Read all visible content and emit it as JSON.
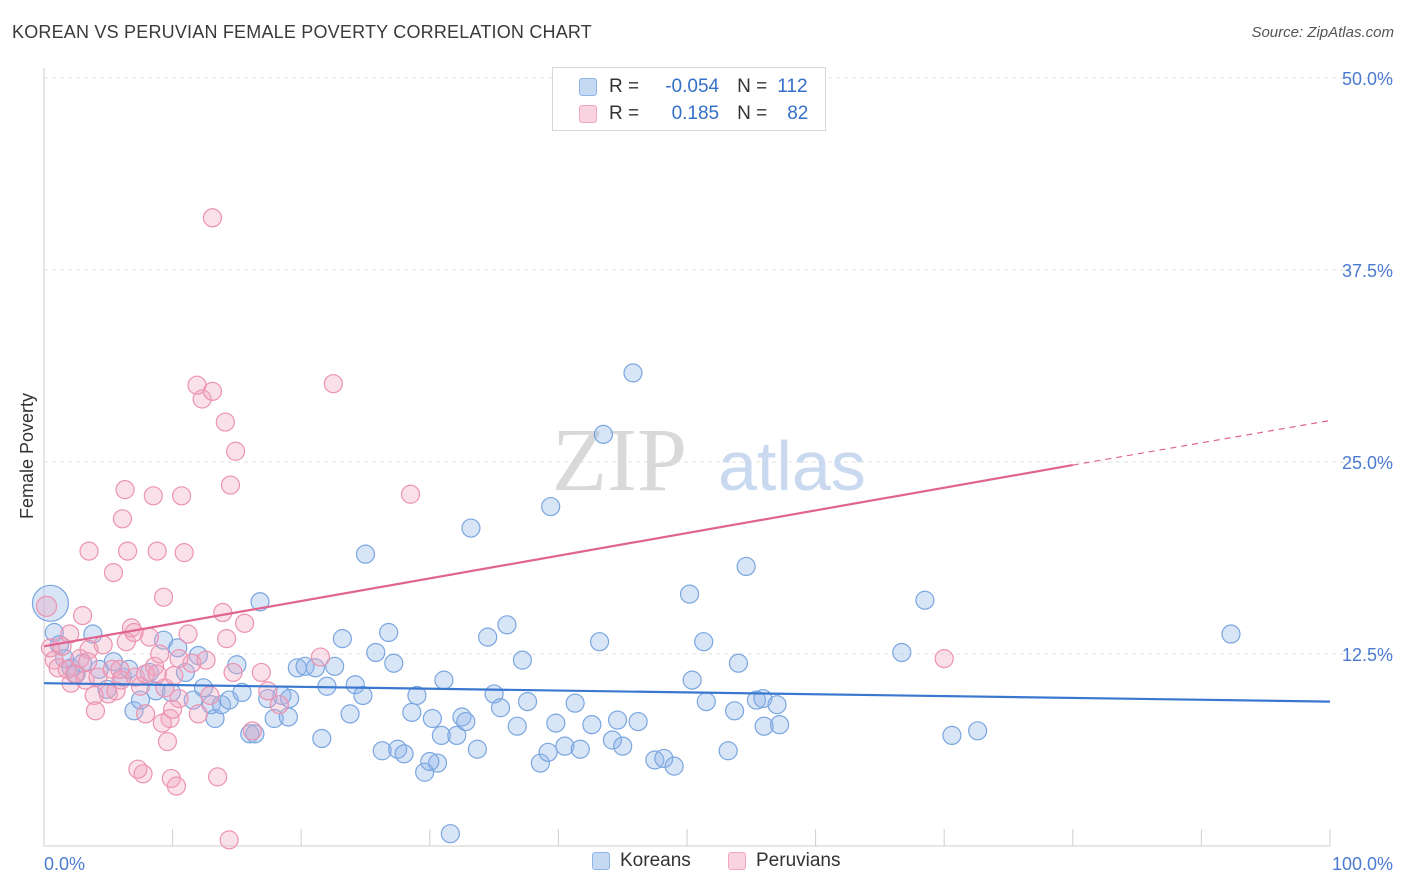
{
  "title": "KOREAN VS PERUVIAN FEMALE POVERTY CORRELATION CHART",
  "source": "Source: ZipAtlas.com",
  "watermark": {
    "zip": "ZIP",
    "atlas": "atlas"
  },
  "legend": {
    "rows": [
      {
        "r_label": "R =",
        "r_value": "-0.054",
        "n_label": "N =",
        "n_value": "112",
        "color": "#8fb4e8"
      },
      {
        "r_label": "R =",
        "r_value": "0.185",
        "n_label": "N =",
        "n_value": "82",
        "color": "#f2a7bf"
      }
    ]
  },
  "bottom_legend": {
    "koreans": "Koreans",
    "peruvians": "Peruvians"
  },
  "chart_data": {
    "type": "scatter",
    "title": "KOREAN VS PERUVIAN FEMALE POVERTY CORRELATION CHART",
    "ylabel": "Female Poverty",
    "xlim": [
      0,
      100
    ],
    "ylim": [
      0,
      50
    ],
    "x_tick_labels": [
      "0.0%",
      "100.0%"
    ],
    "y_ticks": [
      12.5,
      25.0,
      37.5,
      50.0
    ],
    "y_tick_labels": [
      "12.5%",
      "25.0%",
      "37.5%",
      "50.0%"
    ],
    "grid": true,
    "legend_position": "top-center",
    "colors": {
      "koreans": "#8fb4e8",
      "koreans_line": "#3a78d0",
      "peruvians": "#f2a7bf",
      "peruvians_line": "#e0648f"
    },
    "series": [
      {
        "name": "Koreans",
        "trend": {
          "x": [
            0,
            100
          ],
          "y": [
            10.6,
            9.4
          ]
        },
        "points": [
          [
            0.5,
            15.8
          ],
          [
            0.8,
            13.9
          ],
          [
            1.2,
            13.1
          ],
          [
            1.6,
            12.2
          ],
          [
            2.1,
            11.6
          ],
          [
            2.5,
            11.2
          ],
          [
            3.0,
            11.9
          ],
          [
            3.8,
            13.8
          ],
          [
            4.3,
            11.5
          ],
          [
            4.9,
            10.2
          ],
          [
            5.4,
            12.0
          ],
          [
            6.1,
            11.0
          ],
          [
            6.6,
            11.5
          ],
          [
            7.0,
            8.8
          ],
          [
            7.5,
            9.5
          ],
          [
            8.2,
            11.3
          ],
          [
            8.7,
            10.1
          ],
          [
            9.3,
            13.4
          ],
          [
            9.9,
            10.0
          ],
          [
            10.4,
            12.9
          ],
          [
            11.0,
            11.3
          ],
          [
            11.6,
            9.5
          ],
          [
            12.0,
            12.4
          ],
          [
            12.4,
            10.3
          ],
          [
            13.0,
            9.2
          ],
          [
            13.3,
            8.3
          ],
          [
            13.8,
            9.2
          ],
          [
            14.4,
            9.5
          ],
          [
            15.0,
            11.8
          ],
          [
            15.4,
            10.0
          ],
          [
            16.0,
            7.3
          ],
          [
            16.4,
            7.3
          ],
          [
            16.8,
            15.9
          ],
          [
            17.4,
            9.6
          ],
          [
            17.9,
            8.3
          ],
          [
            18.5,
            9.8
          ],
          [
            19.0,
            8.4
          ],
          [
            19.1,
            9.6
          ],
          [
            19.7,
            11.6
          ],
          [
            20.3,
            11.7
          ],
          [
            21.1,
            11.6
          ],
          [
            21.6,
            7.0
          ],
          [
            22.0,
            10.4
          ],
          [
            22.6,
            11.7
          ],
          [
            23.2,
            13.5
          ],
          [
            23.8,
            8.6
          ],
          [
            24.2,
            10.5
          ],
          [
            24.8,
            9.8
          ],
          [
            25.0,
            19.0
          ],
          [
            25.8,
            12.6
          ],
          [
            26.3,
            6.2
          ],
          [
            26.8,
            13.9
          ],
          [
            27.2,
            11.9
          ],
          [
            27.5,
            6.3
          ],
          [
            28.0,
            6.0
          ],
          [
            28.6,
            8.7
          ],
          [
            29.0,
            9.8
          ],
          [
            29.6,
            4.8
          ],
          [
            30.2,
            8.3
          ],
          [
            30.6,
            5.4
          ],
          [
            30.9,
            7.2
          ],
          [
            31.1,
            10.8
          ],
          [
            31.6,
            0.8
          ],
          [
            32.1,
            7.2
          ],
          [
            32.5,
            8.4
          ],
          [
            32.8,
            8.1
          ],
          [
            33.7,
            6.3
          ],
          [
            33.2,
            20.7
          ],
          [
            34.5,
            13.6
          ],
          [
            35.0,
            9.9
          ],
          [
            35.5,
            9.0
          ],
          [
            36.0,
            14.4
          ],
          [
            36.8,
            7.8
          ],
          [
            37.2,
            12.1
          ],
          [
            37.6,
            9.4
          ],
          [
            38.6,
            5.4
          ],
          [
            39.2,
            6.1
          ],
          [
            39.4,
            22.1
          ],
          [
            39.8,
            8.0
          ],
          [
            40.5,
            6.5
          ],
          [
            41.3,
            9.3
          ],
          [
            41.7,
            6.3
          ],
          [
            42.6,
            7.9
          ],
          [
            43.2,
            13.3
          ],
          [
            43.5,
            26.8
          ],
          [
            44.2,
            6.9
          ],
          [
            44.6,
            8.2
          ],
          [
            45.0,
            6.5
          ],
          [
            45.8,
            30.8
          ],
          [
            46.2,
            8.1
          ],
          [
            47.5,
            5.6
          ],
          [
            48.2,
            5.7
          ],
          [
            49.0,
            5.2
          ],
          [
            50.2,
            16.4
          ],
          [
            50.4,
            10.8
          ],
          [
            51.3,
            13.3
          ],
          [
            51.5,
            9.4
          ],
          [
            53.2,
            6.2
          ],
          [
            53.7,
            8.8
          ],
          [
            54.0,
            11.9
          ],
          [
            54.6,
            18.2
          ],
          [
            55.4,
            9.5
          ],
          [
            55.9,
            9.6
          ],
          [
            56.0,
            7.8
          ],
          [
            57.0,
            9.2
          ],
          [
            57.2,
            7.9
          ],
          [
            66.7,
            12.6
          ],
          [
            68.5,
            16.0
          ],
          [
            70.6,
            7.2
          ],
          [
            72.6,
            7.5
          ],
          [
            92.3,
            13.8
          ],
          [
            30.0,
            5.5
          ]
        ]
      },
      {
        "name": "Peruvians",
        "trend": {
          "x": [
            0,
            80
          ],
          "y": [
            13.0,
            24.8
          ]
        },
        "trend_extension": {
          "x": [
            80,
            100
          ],
          "y": [
            24.8,
            27.7
          ]
        },
        "points": [
          [
            0.2,
            15.6
          ],
          [
            0.5,
            12.9
          ],
          [
            0.8,
            12.1
          ],
          [
            1.1,
            11.6
          ],
          [
            1.4,
            13.0
          ],
          [
            1.8,
            11.5
          ],
          [
            2.1,
            10.6
          ],
          [
            2.4,
            11.2
          ],
          [
            2.8,
            12.2
          ],
          [
            3.2,
            10.8
          ],
          [
            3.5,
            12.8
          ],
          [
            3.9,
            9.8
          ],
          [
            4.2,
            11.0
          ],
          [
            4.6,
            13.1
          ],
          [
            5.0,
            9.9
          ],
          [
            5.3,
            11.5
          ],
          [
            5.6,
            10.1
          ],
          [
            6.0,
            10.8
          ],
          [
            6.4,
            13.3
          ],
          [
            6.8,
            14.2
          ],
          [
            7.1,
            11.0
          ],
          [
            7.5,
            10.4
          ],
          [
            7.9,
            11.2
          ],
          [
            8.2,
            13.6
          ],
          [
            8.6,
            11.7
          ],
          [
            9.0,
            12.5
          ],
          [
            9.4,
            10.3
          ],
          [
            9.8,
            8.3
          ],
          [
            10.1,
            11.1
          ],
          [
            10.5,
            9.6
          ],
          [
            3.0,
            15.0
          ],
          [
            3.5,
            19.2
          ],
          [
            5.4,
            17.8
          ],
          [
            6.3,
            23.2
          ],
          [
            6.1,
            21.3
          ],
          [
            6.5,
            19.2
          ],
          [
            7.0,
            13.9
          ],
          [
            7.7,
            4.7
          ],
          [
            7.3,
            5.0
          ],
          [
            7.9,
            8.6
          ],
          [
            8.5,
            22.8
          ],
          [
            8.8,
            19.2
          ],
          [
            9.3,
            16.2
          ],
          [
            9.6,
            6.8
          ],
          [
            9.9,
            4.4
          ],
          [
            10.3,
            3.9
          ],
          [
            10.7,
            22.8
          ],
          [
            10.9,
            19.1
          ],
          [
            11.2,
            13.8
          ],
          [
            11.5,
            11.9
          ],
          [
            12.0,
            8.6
          ],
          [
            12.3,
            29.1
          ],
          [
            11.9,
            30.0
          ],
          [
            13.1,
            29.6
          ],
          [
            12.9,
            9.8
          ],
          [
            13.5,
            4.5
          ],
          [
            13.9,
            15.2
          ],
          [
            14.2,
            13.5
          ],
          [
            14.4,
            0.4
          ],
          [
            14.7,
            11.3
          ],
          [
            13.1,
            40.9
          ],
          [
            14.1,
            27.6
          ],
          [
            14.5,
            23.5
          ],
          [
            14.9,
            25.7
          ],
          [
            15.6,
            14.5
          ],
          [
            16.2,
            7.5
          ],
          [
            16.9,
            11.3
          ],
          [
            17.4,
            10.1
          ],
          [
            18.3,
            9.2
          ],
          [
            22.5,
            30.1
          ],
          [
            21.5,
            12.3
          ],
          [
            28.5,
            22.9
          ],
          [
            70.0,
            12.2
          ],
          [
            2.0,
            13.8
          ],
          [
            3.4,
            12.0
          ],
          [
            4.0,
            8.8
          ],
          [
            5.9,
            11.5
          ],
          [
            8.8,
            11.2
          ],
          [
            10.5,
            12.2
          ],
          [
            12.6,
            12.1
          ],
          [
            9.2,
            8.0
          ],
          [
            10.0,
            8.9
          ]
        ]
      }
    ]
  }
}
